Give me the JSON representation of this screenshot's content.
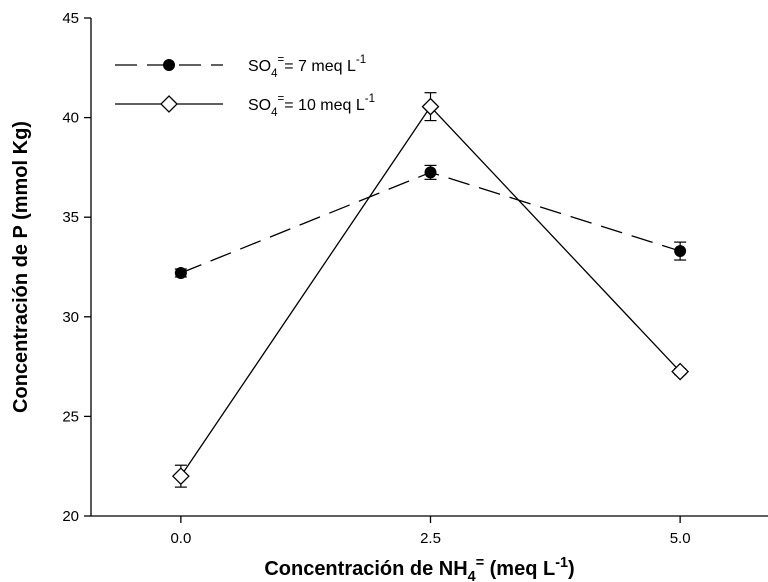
{
  "chart_data": {
    "type": "line",
    "y_label": "Concentración de P (mmol Kg)",
    "x_label": [
      {
        "text": "Concentración de NH",
        "script": "none"
      },
      {
        "text": "4",
        "script": "sub"
      },
      {
        "text": "=",
        "script": "sup"
      },
      {
        "text": " (meq L",
        "script": "none"
      },
      {
        "text": "-1",
        "script": "sup"
      },
      {
        "text": ")",
        "script": "none"
      }
    ],
    "x": [
      0,
      2.5,
      5
    ],
    "xlim": [
      -0.9,
      5.88
    ],
    "xticks": [
      {
        "value": 0,
        "label": "0.0"
      },
      2.5,
      {
        "value": 5,
        "label": "5.0"
      }
    ],
    "ylim": [
      20,
      45
    ],
    "yticks": [
      20,
      25,
      30,
      35,
      40,
      45
    ],
    "legend_position": "upper left",
    "series": [
      {
        "name": [
          {
            "text": "SO",
            "script": "none"
          },
          {
            "text": "4",
            "script": "sub"
          },
          {
            "text": "=",
            "script": "sup"
          },
          {
            "text": "= 7 meq L",
            "script": "none"
          },
          {
            "text": "-1",
            "script": "sup"
          }
        ],
        "color": "#000000",
        "marker": "circle",
        "line": "dashed",
        "values": [
          32.2,
          37.25,
          33.3
        ],
        "errors": [
          0.2,
          0.35,
          0.45
        ]
      },
      {
        "name": [
          {
            "text": "SO",
            "script": "none"
          },
          {
            "text": "4",
            "script": "sub"
          },
          {
            "text": "=",
            "script": "sup"
          },
          {
            "text": "= 10 meq L",
            "script": "none"
          },
          {
            "text": "-1",
            "script": "sup"
          }
        ],
        "color": "#000000",
        "marker": "diamond",
        "line": "solid",
        "values": [
          22.0,
          40.55,
          27.25
        ],
        "errors": [
          0.55,
          0.7,
          0.15
        ]
      }
    ]
  }
}
